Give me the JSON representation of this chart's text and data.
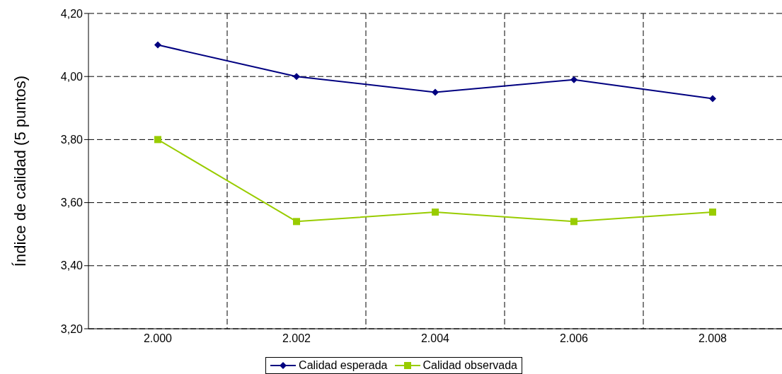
{
  "chart_data": {
    "type": "line",
    "ylabel": "Índice de calidad (5 puntos)",
    "categories": [
      "2.000",
      "2.002",
      "2.004",
      "2.006",
      "2.008"
    ],
    "series": [
      {
        "name": "Calidad esperada",
        "color": "#000080",
        "marker": "diamond",
        "values": [
          4.1,
          4.0,
          3.95,
          3.99,
          3.93
        ]
      },
      {
        "name": "Calidad observada",
        "color": "#99cc00",
        "marker": "square",
        "values": [
          3.8,
          3.54,
          3.57,
          3.54,
          3.57
        ]
      }
    ],
    "ylim": [
      3.2,
      4.2
    ],
    "yticks": [
      {
        "value": 3.2,
        "label": "3,20"
      },
      {
        "value": 3.4,
        "label": "3,40"
      },
      {
        "value": 3.6,
        "label": "3,60"
      },
      {
        "value": 3.8,
        "label": "3,80"
      },
      {
        "value": 4.0,
        "label": "4,00"
      },
      {
        "value": 4.2,
        "label": "4,20"
      }
    ],
    "grid": true,
    "legend": "bottom",
    "line_style": "solid"
  }
}
